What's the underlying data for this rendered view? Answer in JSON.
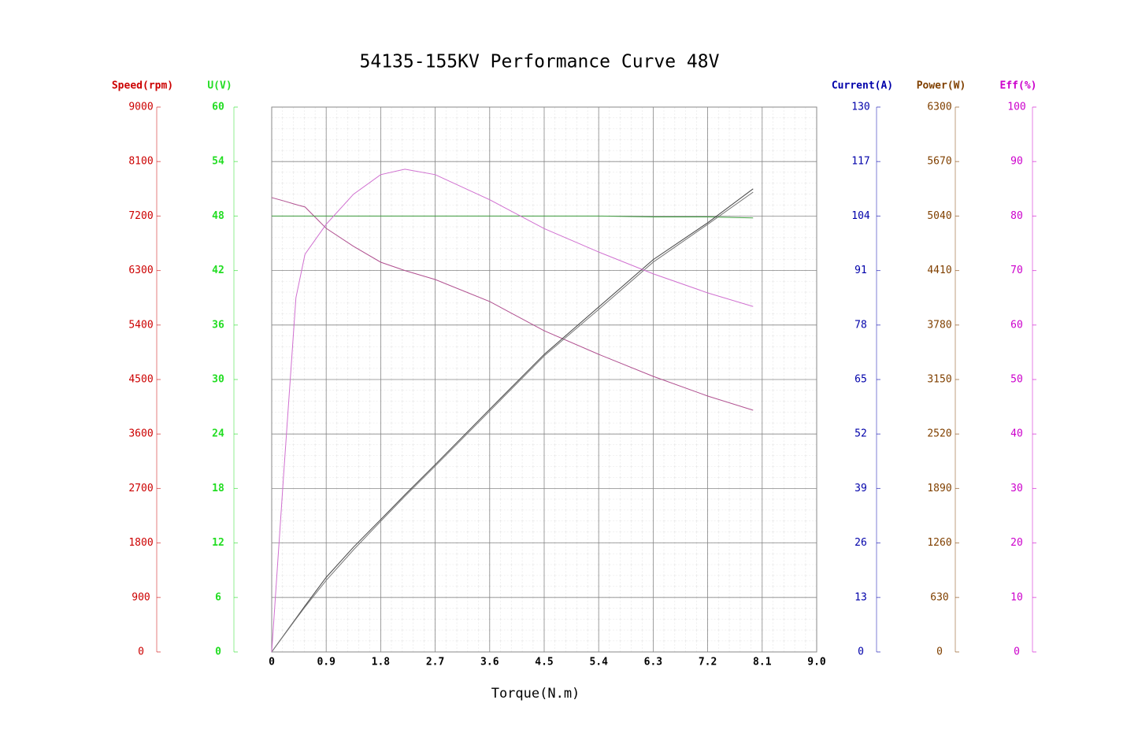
{
  "chart_data": {
    "type": "line",
    "title": "54135-155KV Performance Curve 48V",
    "x_label": "Torque(N.m)",
    "xlim": [
      0,
      9
    ],
    "xticks": [
      0,
      0.9,
      1.8,
      2.7,
      3.6,
      4.5,
      5.4,
      6.3,
      7.2,
      8.1,
      {
        "value": 9,
        "label": "9.0"
      }
    ],
    "grid": true,
    "axes": [
      {
        "label": "Speed(rpm)",
        "color": "#cc0000",
        "lim": [
          0,
          9000
        ],
        "ticks": [
          0,
          900,
          1800,
          2700,
          3600,
          4500,
          5400,
          6300,
          7200,
          8100,
          9000
        ]
      },
      {
        "label": "U(V)",
        "color": "#22dd22",
        "lim": [
          0,
          60
        ],
        "ticks": [
          0,
          6,
          12,
          18,
          24,
          30,
          36,
          42,
          48,
          54,
          60
        ]
      },
      {
        "label": "Current(A)",
        "color": "#0000aa",
        "lim": [
          0,
          130
        ],
        "ticks": [
          0,
          13,
          26,
          39,
          52,
          65,
          78,
          91,
          104,
          117,
          130
        ]
      },
      {
        "label": "Power(W)",
        "color": "#804000",
        "lim": [
          0,
          6300
        ],
        "ticks": [
          0,
          630,
          1260,
          1890,
          2520,
          3150,
          3780,
          4410,
          5040,
          5670,
          6300
        ]
      },
      {
        "label": "Eff(%)",
        "color": "#cc00cc",
        "lim": [
          0,
          100
        ],
        "ticks": [
          0,
          10,
          20,
          30,
          40,
          50,
          60,
          70,
          80,
          90,
          100
        ]
      }
    ],
    "x": [
      0,
      0.2,
      0.4,
      0.55,
      0.9,
      1.35,
      1.8,
      2.2,
      2.7,
      3.6,
      4.5,
      5.4,
      6.3,
      7.2,
      7.95
    ],
    "series": [
      {
        "axis": 0,
        "color": "#b05090",
        "values": [
          7505,
          7450,
          7390,
          7350,
          6997,
          6700,
          6438,
          6300,
          6152,
          5788,
          5306,
          4916,
          4552,
          4227,
          3993
        ]
      },
      {
        "axis": 1,
        "color": "#40a040",
        "values": [
          48,
          48,
          48,
          48,
          48,
          48,
          48,
          48,
          48,
          48,
          48,
          48,
          47.9,
          47.9,
          47.8
        ]
      },
      {
        "axis": 2,
        "color": "#444444",
        "values": [
          0,
          4,
          8,
          11,
          17.8,
          25,
          31.6,
          37.5,
          44.7,
          57.9,
          71,
          82.3,
          93.6,
          102.4,
          110.5
        ]
      },
      {
        "axis": 3,
        "color": "#777777",
        "values": [
          0,
          190,
          380,
          520,
          828,
          1180,
          1511,
          1800,
          2149,
          2786,
          3423,
          3960,
          4507,
          4944,
          5317
        ]
      },
      {
        "axis": 4,
        "color": "#d070d0",
        "values": [
          0,
          33,
          65,
          73,
          78.5,
          84,
          87.6,
          88.6,
          87.6,
          83,
          77.7,
          73.4,
          69.4,
          65.9,
          63.4
        ]
      }
    ]
  }
}
